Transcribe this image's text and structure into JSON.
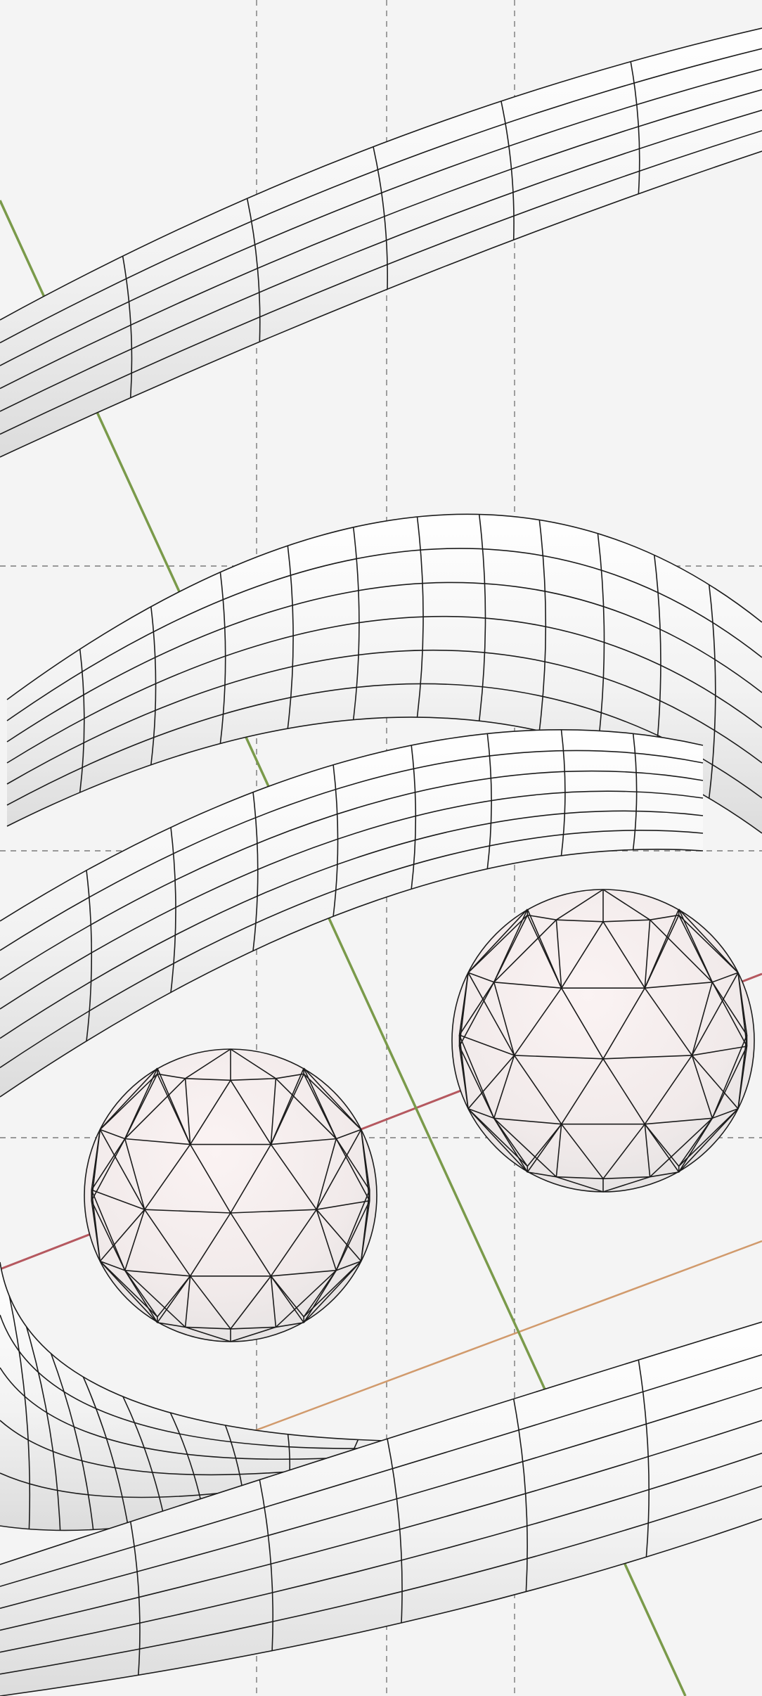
{
  "viewport": {
    "label": "",
    "background": "#f4f4f4"
  },
  "scene": {
    "objects": [
      {
        "kind": "torus",
        "name": "torus-upper"
      },
      {
        "kind": "torus",
        "name": "torus-middle"
      },
      {
        "kind": "torus",
        "name": "torus-lower"
      },
      {
        "kind": "icosphere",
        "name": "icosphere-left"
      },
      {
        "kind": "icosphere",
        "name": "icosphere-right"
      }
    ],
    "axes": {
      "x_color": "#b5585f",
      "y_color": "#7a9a4a",
      "z_color": "#d19a6c"
    },
    "grid": {
      "style": "dashed",
      "color": "#7a7a7a"
    }
  }
}
